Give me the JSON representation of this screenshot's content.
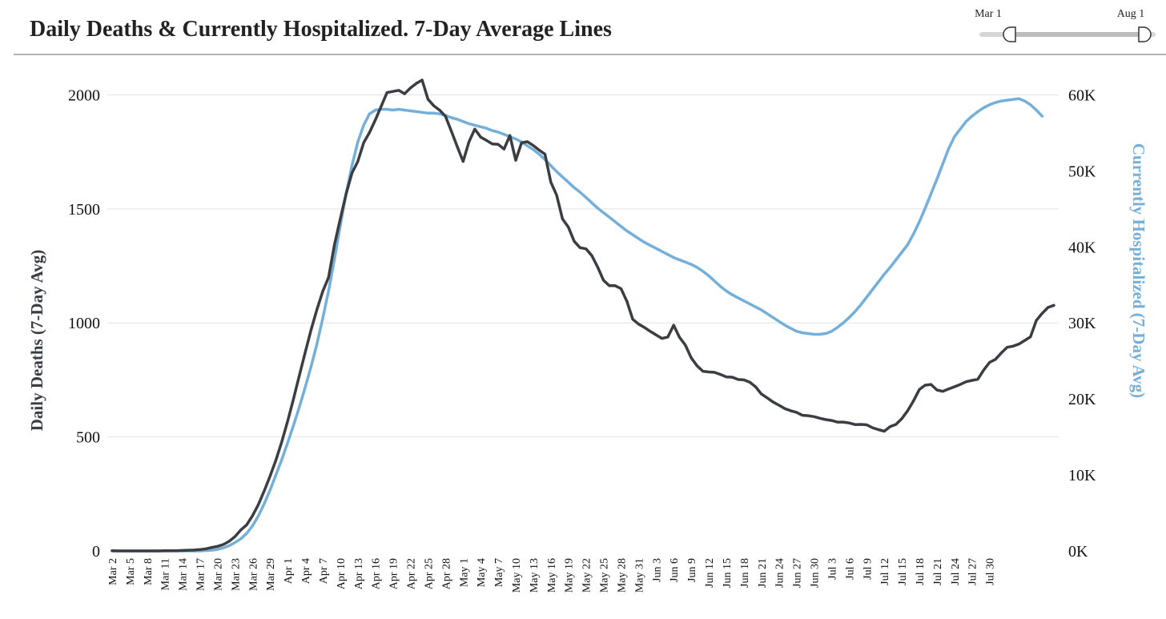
{
  "header": {
    "title": "Daily Deaths & Currently Hospitalized. 7-Day Average Lines",
    "range_start_label": "Mar 1",
    "range_end_label": "Aug 1",
    "range_start_fraction": 0.0,
    "range_end_fraction": 1.0
  },
  "colors": {
    "deaths": "#3a3d42",
    "hospitalized": "#74afd9",
    "grid": "#e2e2e2",
    "divider": "#9a9a9a",
    "slider_track": "#d6d6d6"
  },
  "chart_data": {
    "type": "line",
    "title": "Daily Deaths & Currently Hospitalized. 7-Day Average Lines",
    "xlabel": "",
    "ylabel": "Daily Deaths (7-Day Avg)",
    "y2label": "Currently Hospitalized (7-Day Avg)",
    "ylim": [
      0,
      2100
    ],
    "y2lim": [
      0,
      63000
    ],
    "yticks": [
      0,
      500,
      1000,
      1500,
      2000
    ],
    "y2ticks": [
      "0K",
      "10K",
      "20K",
      "30K",
      "40K",
      "50K",
      "60K"
    ],
    "y2tick_values": [
      0,
      10000,
      20000,
      30000,
      40000,
      50000,
      60000
    ],
    "grid": true,
    "x_tick_labels": [
      "Mar 2",
      "Mar 5",
      "Mar 8",
      "Mar 11",
      "Mar 14",
      "Mar 17",
      "Mar 20",
      "Mar 23",
      "Mar 26",
      "Mar 29",
      "Apr 1",
      "Apr 4",
      "Apr 7",
      "Apr 10",
      "Apr 13",
      "Apr 16",
      "Apr 19",
      "Apr 22",
      "Apr 25",
      "Apr 28",
      "May 1",
      "May 4",
      "May 7",
      "May 10",
      "May 13",
      "May 16",
      "May 19",
      "May 22",
      "May 25",
      "May 28",
      "May 31",
      "Jun 3",
      "Jun 6",
      "Jun 9",
      "Jun 12",
      "Jun 15",
      "Jun 18",
      "Jun 21",
      "Jun 24",
      "Jun 27",
      "Jun 30",
      "Jul 3",
      "Jul 6",
      "Jul 9",
      "Jul 12",
      "Jul 15",
      "Jul 18",
      "Jul 21",
      "Jul 24",
      "Jul 27",
      "Jul 30"
    ],
    "x_start": "2020-03-02",
    "series": [
      {
        "name": "Daily Deaths (7-Day Avg)",
        "axis": "left",
        "values": [
          1,
          0,
          0,
          0,
          0,
          0,
          0,
          0,
          0,
          1,
          1,
          1,
          2,
          3,
          4,
          6,
          9,
          15,
          20,
          28,
          42,
          63,
          92,
          114,
          154,
          203,
          263,
          328,
          398,
          478,
          568,
          665,
          768,
          869,
          968,
          1058,
          1138,
          1200,
          1342,
          1456,
          1566,
          1657,
          1708,
          1790,
          1835,
          1890,
          1950,
          2010,
          2015,
          2020,
          2005,
          2030,
          2050,
          2065,
          1981,
          1952,
          1933,
          1906,
          1840,
          1773,
          1708,
          1794,
          1850,
          1815,
          1800,
          1785,
          1783,
          1762,
          1822,
          1713,
          1790,
          1795,
          1778,
          1758,
          1740,
          1618,
          1560,
          1456,
          1420,
          1358,
          1330,
          1325,
          1295,
          1245,
          1187,
          1163,
          1163,
          1150,
          1095,
          1016,
          995,
          980,
          963,
          947,
          932,
          938,
          990,
          937,
          903,
          847,
          812,
          788,
          785,
          783,
          774,
          763,
          762,
          752,
          750,
          740,
          720,
          688,
          671,
          653,
          639,
          624,
          615,
          608,
          595,
          593,
          589,
          582,
          576,
          572,
          565,
          565,
          561,
          554,
          555,
          553,
          540,
          532,
          525,
          545,
          555,
          580,
          615,
          658,
          708,
          727,
          730,
          706,
          700,
          710,
          720,
          730,
          742,
          748,
          753,
          793,
          827,
          840,
          868,
          893,
          898,
          907,
          923,
          939,
          1011,
          1042,
          1068,
          1077
        ]
      },
      {
        "name": "Currently Hospitalized (7-Day Avg)",
        "axis": "right",
        "values": [
          0,
          0,
          0,
          0,
          0,
          0,
          0,
          0,
          0,
          0,
          0,
          0,
          0,
          0,
          0,
          0,
          50,
          100,
          200,
          400,
          700,
          1100,
          1600,
          2300,
          3300,
          4600,
          6200,
          8000,
          10000,
          12000,
          14200,
          16500,
          18900,
          21500,
          24200,
          27200,
          30600,
          34200,
          38400,
          42800,
          47000,
          50700,
          53800,
          56000,
          57500,
          58000,
          58100,
          58100,
          58000,
          58100,
          58000,
          57900,
          57800,
          57700,
          57600,
          57600,
          57500,
          57300,
          57000,
          56800,
          56500,
          56200,
          56000,
          55800,
          55600,
          55300,
          55100,
          54800,
          54500,
          54200,
          53800,
          53300,
          52800,
          52200,
          51500,
          50700,
          49900,
          49200,
          48500,
          47800,
          47200,
          46500,
          45800,
          45100,
          44500,
          43900,
          43300,
          42700,
          42100,
          41600,
          41100,
          40600,
          40200,
          39800,
          39400,
          39000,
          38600,
          38300,
          38000,
          37700,
          37300,
          36800,
          36200,
          35500,
          34800,
          34200,
          33700,
          33300,
          32900,
          32500,
          32100,
          31700,
          31200,
          30700,
          30200,
          29700,
          29300,
          28900,
          28700,
          28600,
          28500,
          28500,
          28600,
          28900,
          29400,
          30000,
          30700,
          31500,
          32400,
          33400,
          34400,
          35400,
          36400,
          37300,
          38300,
          39300,
          40300,
          41700,
          43300,
          45100,
          47000,
          48900,
          50900,
          52900,
          54500,
          55500,
          56500,
          57200,
          57800,
          58300,
          58700,
          59000,
          59200,
          59300,
          59400,
          59500,
          59200,
          58700,
          58000,
          57200
        ]
      }
    ]
  }
}
